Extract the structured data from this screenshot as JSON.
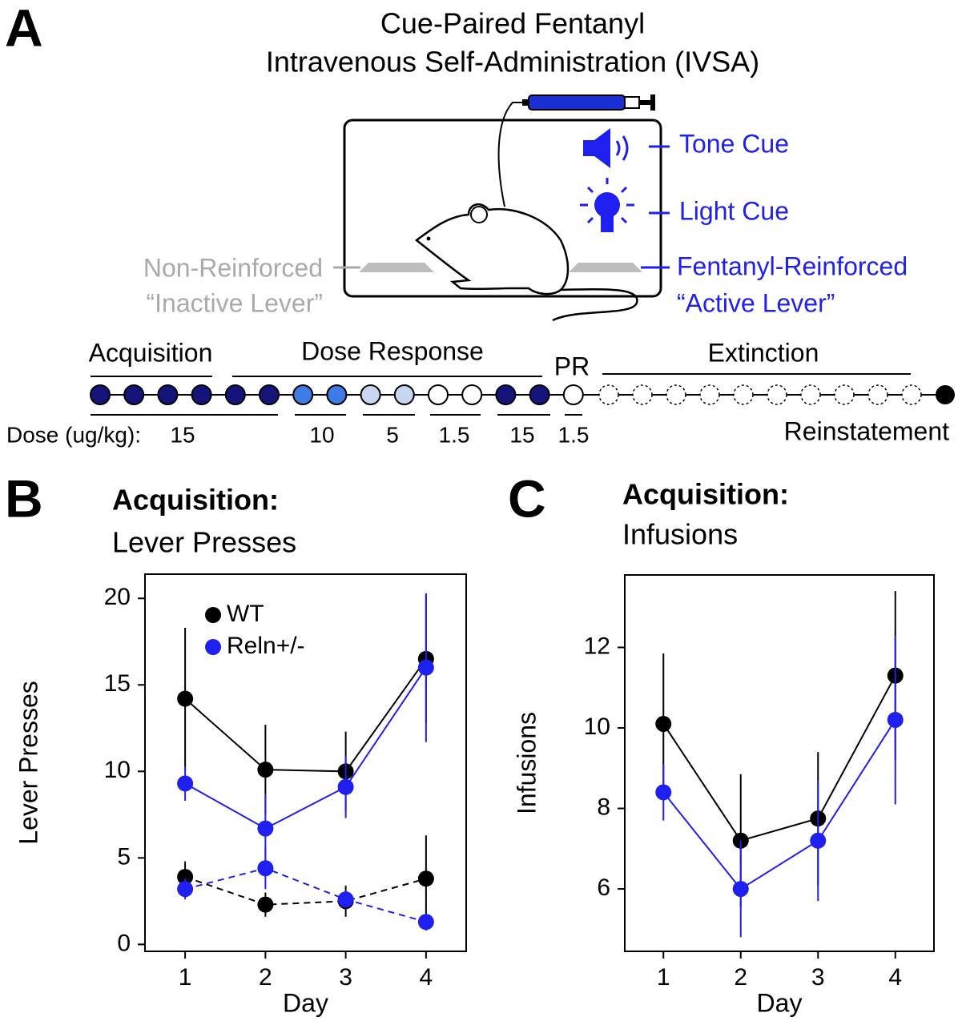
{
  "panel_labels": [
    "A",
    "B",
    "C"
  ],
  "diagram": {
    "title": [
      "Cue-Paired Fentanyl",
      "Intravenous Self-Administration (IVSA)"
    ],
    "cues": [
      "Tone Cue",
      "Light Cue"
    ],
    "active_lever": [
      "Fentanyl-Reinforced",
      "“Active Lever”"
    ],
    "inactive_lever": [
      "Non-Reinforced",
      "“Inactive Lever”"
    ],
    "timeline": {
      "phases": [
        "Acquisition",
        "Dose Response",
        "PR",
        "Extinction"
      ],
      "dose_label": "Dose (ug/kg):",
      "doses": [
        "15",
        "10",
        "5",
        "1.5",
        "15",
        "1.5"
      ],
      "end_label": "Reinstatement"
    }
  },
  "chart_data": [
    {
      "type": "line",
      "title": "Acquisition:",
      "subtitle": "Lever Presses",
      "xlabel": "Day",
      "ylabel": "Lever Presses",
      "x": [
        1,
        2,
        3,
        4
      ],
      "xlim": [
        0.5,
        4.5
      ],
      "xticks": [
        1,
        2,
        3,
        4
      ],
      "ylim": [
        -0.4,
        21.4
      ],
      "yticks": [
        0,
        5,
        10,
        15,
        20
      ],
      "legend": "upper left",
      "series": [
        {
          "name": "WT",
          "color": "#000000",
          "values": [
            14.2,
            10.1,
            10.0,
            16.5
          ],
          "errors": [
            4.1,
            2.6,
            2.3,
            3.7
          ],
          "inactive_values": [
            3.9,
            2.3,
            2.5,
            3.8
          ],
          "inactive_errors": [
            0.9,
            0.7,
            0.9,
            2.5
          ]
        },
        {
          "name": "Reln+/-",
          "color": "#1f1ff0",
          "values": [
            9.3,
            6.7,
            9.1,
            16.0
          ],
          "errors": [
            1.0,
            2.0,
            1.8,
            4.3
          ],
          "inactive_values": [
            3.2,
            4.4,
            2.6,
            1.3
          ],
          "inactive_errors": [
            0.6,
            1.2,
            0.5,
            0.5
          ]
        }
      ]
    },
    {
      "type": "line",
      "title": "Acquisition:",
      "subtitle": "Infusions",
      "xlabel": "Day",
      "ylabel": "Infusions",
      "x": [
        1,
        2,
        3,
        4
      ],
      "xlim": [
        0.5,
        4.5
      ],
      "xticks": [
        1,
        2,
        3,
        4
      ],
      "ylim": [
        4.45,
        13.8
      ],
      "yticks": [
        6,
        8,
        10,
        12
      ],
      "series": [
        {
          "color": "#000000",
          "values": [
            10.1,
            7.2,
            7.75,
            11.3
          ],
          "errors": [
            1.75,
            1.65,
            1.65,
            2.1
          ]
        },
        {
          "color": "#1f1ff0",
          "values": [
            8.4,
            6.0,
            7.2,
            10.2
          ],
          "errors": [
            0.7,
            1.2,
            1.5,
            2.1
          ]
        }
      ]
    }
  ]
}
